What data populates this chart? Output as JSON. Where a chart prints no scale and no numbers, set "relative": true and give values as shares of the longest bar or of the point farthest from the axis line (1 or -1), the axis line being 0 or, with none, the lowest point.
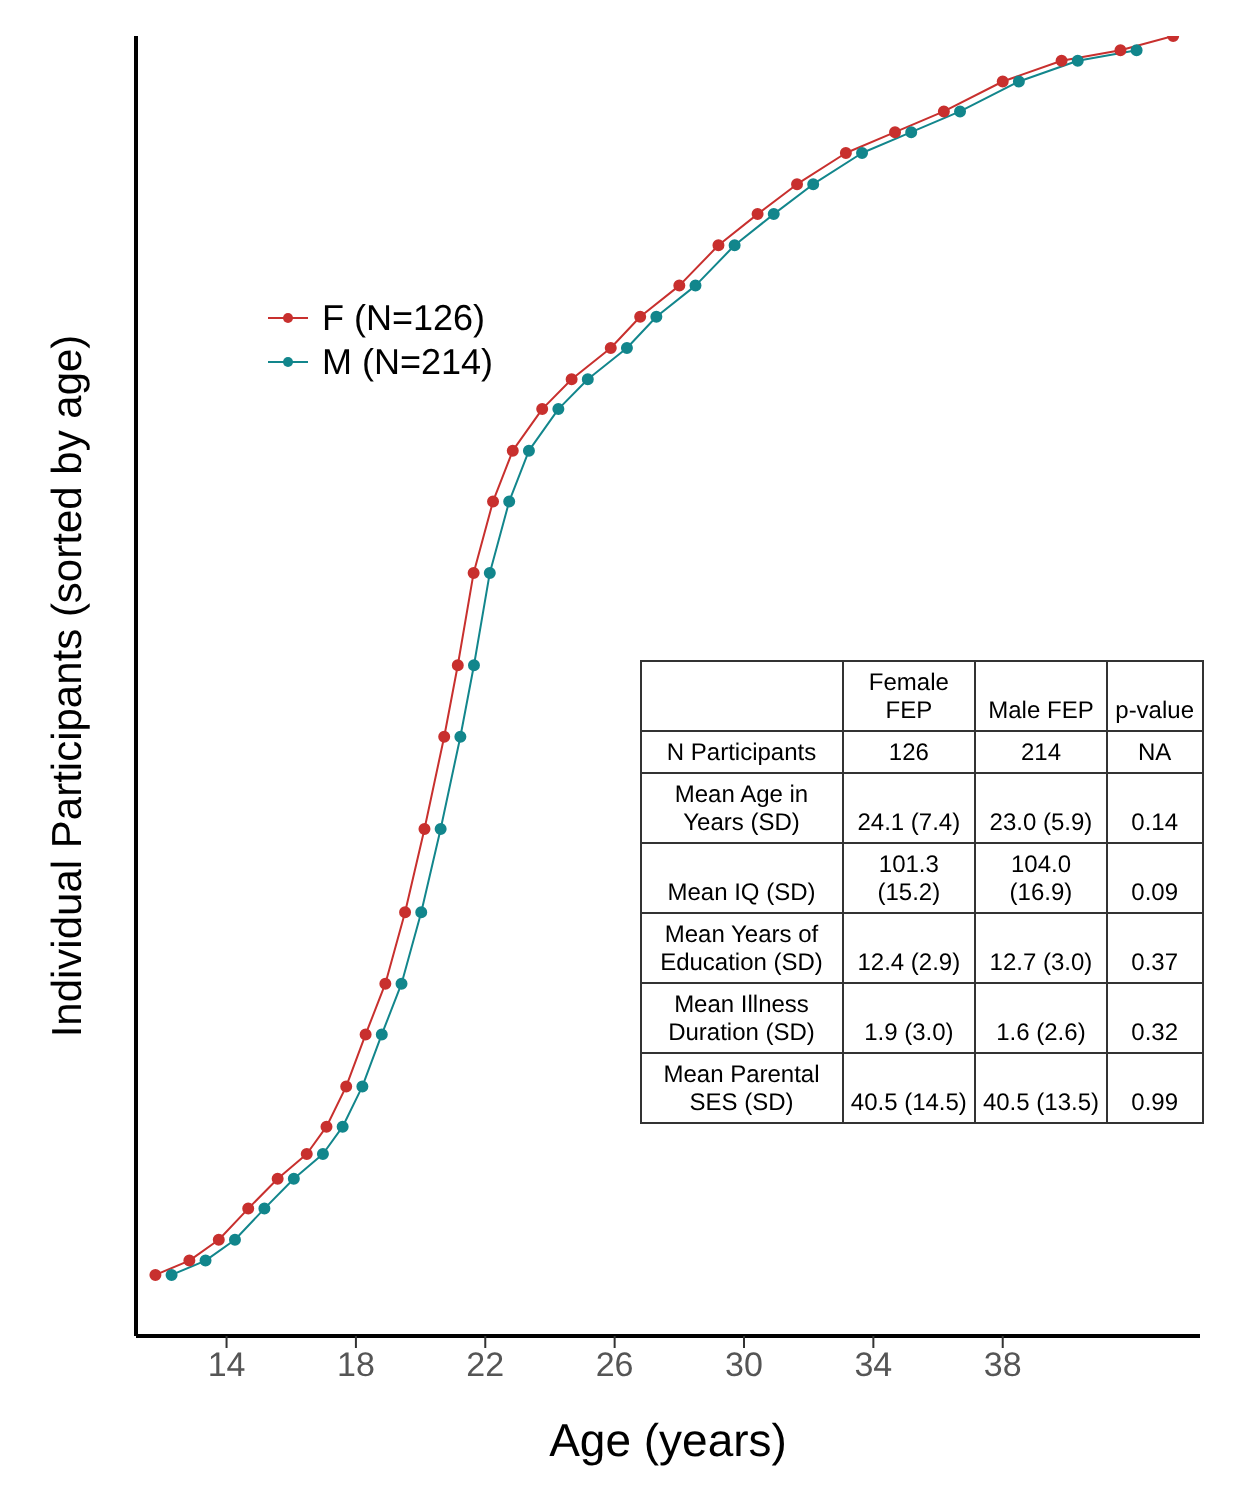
{
  "chart_data": {
    "type": "line",
    "xlabel": "Age (years)",
    "ylabel": "Individual Participants (sorted by age)",
    "xlim": [
      11.2,
      44.1
    ],
    "xticks": [
      14,
      18,
      22,
      26,
      30,
      34,
      38
    ],
    "relative": true,
    "marker": "circle",
    "legend": "top left",
    "grid": false,
    "series": [
      {
        "name": "F (N=126)",
        "color": "#c8302e",
        "x": [
          11.8,
          12.85,
          13.76,
          14.67,
          15.58,
          16.48,
          17.09,
          17.7,
          18.3,
          18.91,
          19.52,
          20.12,
          20.73,
          21.15,
          21.64,
          22.24,
          22.85,
          23.76,
          24.67,
          25.88,
          26.79,
          28.0,
          29.21,
          30.42,
          31.64,
          33.15,
          34.67,
          36.18,
          38.0,
          39.82,
          41.64,
          43.27
        ],
        "values": [
          0.047,
          0.058,
          0.074,
          0.098,
          0.121,
          0.14,
          0.161,
          0.192,
          0.232,
          0.271,
          0.326,
          0.39,
          0.461,
          0.516,
          0.587,
          0.642,
          0.681,
          0.713,
          0.736,
          0.76,
          0.784,
          0.808,
          0.839,
          0.863,
          0.886,
          0.91,
          0.926,
          0.942,
          0.965,
          0.981,
          0.989,
          1.0
        ]
      },
      {
        "name": "M (N=214)",
        "color": "#12868c",
        "x": [
          12.3,
          13.35,
          14.26,
          15.17,
          16.08,
          16.98,
          17.59,
          18.2,
          18.8,
          19.41,
          20.02,
          20.62,
          21.23,
          21.65,
          22.14,
          22.74,
          23.35,
          24.26,
          25.17,
          26.38,
          27.29,
          28.5,
          29.71,
          30.92,
          32.14,
          33.65,
          35.17,
          36.68,
          38.5,
          40.32,
          42.14
        ],
        "values": [
          0.047,
          0.058,
          0.074,
          0.098,
          0.121,
          0.14,
          0.161,
          0.192,
          0.232,
          0.271,
          0.326,
          0.39,
          0.461,
          0.516,
          0.587,
          0.642,
          0.681,
          0.713,
          0.736,
          0.76,
          0.784,
          0.808,
          0.839,
          0.863,
          0.886,
          0.91,
          0.926,
          0.942,
          0.965,
          0.981,
          0.989
        ]
      }
    ],
    "annotations": [
      "Female FEP",
      "Male FEP",
      "p-value",
      "N Participants",
      "126",
      "214",
      "NA",
      "Mean Age in Years (SD)",
      "24.1 (7.4)",
      "23.0 (5.9)",
      "0.14",
      "Mean IQ (SD)",
      "101.3 (15.2)",
      "104.0 (16.9)",
      "0.09",
      "Mean Years of Education (SD)",
      "12.4 (2.9)",
      "12.7 (3.0)",
      "0.37",
      "Mean Illness Duration (SD)",
      "1.9 (3.0)",
      "1.6 (2.6)",
      "0.32",
      "Mean Parental SES (SD)",
      "40.5 (14.5)",
      "40.5 (13.5)",
      "0.99"
    ]
  }
}
